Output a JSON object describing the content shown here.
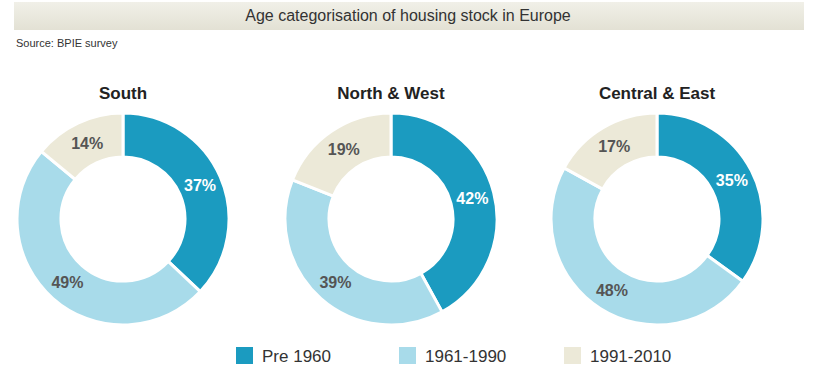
{
  "title": "Age categorisation of housing stock in Europe",
  "source": "Source: BPIE survey",
  "chart_data": [
    {
      "type": "pie",
      "title": "South",
      "categories": [
        "Pre 1960",
        "1961-1990",
        "1991-2010"
      ],
      "values": [
        37,
        49,
        14
      ],
      "value_labels": [
        "37%",
        "49%",
        "14%"
      ],
      "colors": [
        "#1b9bc0",
        "#a8dbea",
        "#ece9d8"
      ],
      "data_labels": true
    },
    {
      "type": "pie",
      "title": "North & West",
      "categories": [
        "Pre 1960",
        "1961-1990",
        "1991-2010"
      ],
      "values": [
        42,
        39,
        19
      ],
      "value_labels": [
        "42%",
        "39%",
        "19%"
      ],
      "colors": [
        "#1b9bc0",
        "#a8dbea",
        "#ece9d8"
      ],
      "data_labels": true
    },
    {
      "type": "pie",
      "title": "Central & East",
      "categories": [
        "Pre 1960",
        "1961-1990",
        "1991-2010"
      ],
      "values": [
        35,
        48,
        17
      ],
      "value_labels": [
        "35%",
        "48%",
        "17%"
      ],
      "colors": [
        "#1b9bc0",
        "#a8dbea",
        "#ece9d8"
      ],
      "data_labels": true
    }
  ]
}
